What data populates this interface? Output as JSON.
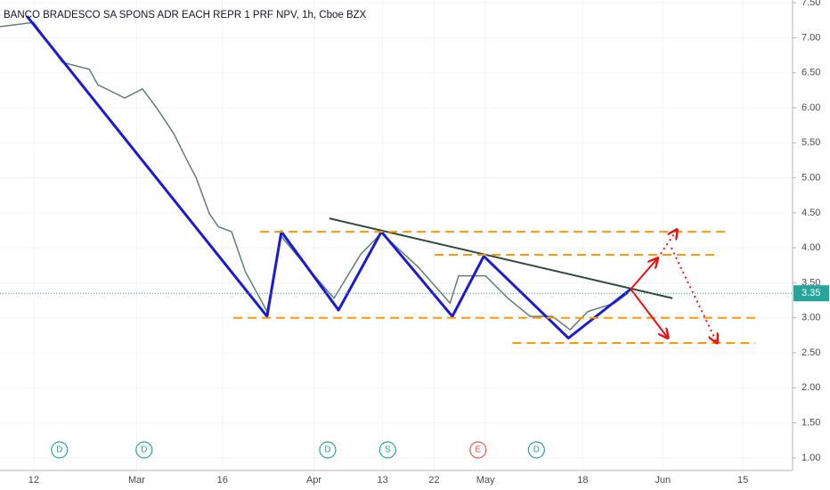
{
  "chart_data": {
    "type": "line",
    "title": "BANCO BRADESCO SA SPONS ADR EACH REPR 1 PRF NPV, 1h, Cboe BZX",
    "series": [
      {
        "color": "#5f7f73",
        "x": [
          37.1,
          43,
          48,
          52.7,
          54.2,
          58.9,
          62,
          64.4,
          67.5,
          69.8,
          71.4,
          73.7,
          75.3,
          77.6,
          80,
          83.8,
          86.2,
          90.8,
          95.5,
          100.2,
          103.8,
          110.3,
          115.8,
          117.3,
          122,
          125.9,
          129.8,
          133.7,
          136.8,
          139.9,
          144.6,
          146.9
        ],
        "values": [
          7.16,
          7.22,
          6.65,
          6.55,
          6.33,
          6.14,
          6.27,
          6.01,
          5.63,
          5.25,
          5.0,
          4.49,
          4.3,
          4.23,
          3.66,
          3.09,
          4.17,
          3.72,
          3.28,
          3.91,
          4.21,
          3.72,
          3.21,
          3.6,
          3.6,
          3.28,
          3.02,
          3.02,
          2.83,
          3.09,
          3.21,
          3.35
        ]
      }
    ],
    "last_price": {
      "value": 3.35,
      "label": "3.35",
      "color": "#26a69a"
    },
    "overlays": [
      {
        "style": "solid",
        "color": "#1a1ad6",
        "width": 3,
        "arrow": false,
        "x": [
          41.8,
          83.8,
          86.3,
          96.3,
          103.8,
          116.2,
          121.7,
          136.5,
          147.4
        ],
        "y": [
          7.31,
          3.02,
          4.23,
          3.11,
          4.23,
          3.02,
          3.88,
          2.71,
          3.41
        ]
      },
      {
        "style": "solid",
        "color": "#2e4a3a",
        "width": 2,
        "arrow": false,
        "x": [
          94.7,
          154.7
        ],
        "y": [
          4.42,
          3.28
        ]
      },
      {
        "style": "dashed",
        "color": "#ff9800",
        "width": 2,
        "arrow": false,
        "x": [
          82.6,
          164.1
        ],
        "y": [
          4.23,
          4.23
        ]
      },
      {
        "style": "dashed",
        "color": "#ff9800",
        "width": 2,
        "arrow": false,
        "x": [
          113.1,
          162.5
        ],
        "y": [
          3.9,
          3.9
        ]
      },
      {
        "style": "dashed",
        "color": "#ff9800",
        "width": 2,
        "arrow": false,
        "x": [
          77.9,
          169.2
        ],
        "y": [
          3.0,
          3.0
        ]
      },
      {
        "style": "dashed",
        "color": "#ff9800",
        "width": 2,
        "arrow": false,
        "x": [
          126.7,
          169.2
        ],
        "y": [
          2.64,
          2.64
        ]
      },
      {
        "style": "solid",
        "color": "#f01010",
        "width": 2,
        "arrow": true,
        "x": [
          147.4,
          152.1
        ],
        "y": [
          3.41,
          3.85
        ]
      },
      {
        "style": "solid",
        "color": "#f01010",
        "width": 2,
        "arrow": true,
        "x": [
          147.4,
          153.9
        ],
        "y": [
          3.41,
          2.71
        ]
      },
      {
        "style": "dotted",
        "color": "#f01010",
        "width": 2,
        "arrow": true,
        "x": [
          152.1,
          155.5
        ],
        "y": [
          3.85,
          4.26
        ]
      },
      {
        "style": "dotted",
        "color": "#f01010",
        "width": 2,
        "arrow": true,
        "x": [
          154.5,
          162.5
        ],
        "y": [
          4.0,
          2.64
        ]
      }
    ],
    "events": [
      {
        "label": "D",
        "x": 47.5,
        "color": "#26a69a"
      },
      {
        "label": "D",
        "x": 62.3,
        "color": "#26a69a"
      },
      {
        "label": "D",
        "x": 94.4,
        "color": "#26a69a"
      },
      {
        "label": "S",
        "x": 104.9,
        "color": "#26a69a"
      },
      {
        "label": "E",
        "x": 120.7,
        "color": "#ef5350"
      },
      {
        "label": "D",
        "x": 130.9,
        "color": "#26a69a"
      }
    ],
    "xlim": [
      37.1,
      175.7
    ],
    "xticks": [
      {
        "value": 43,
        "label": "12"
      },
      {
        "value": 61,
        "label": "Mar"
      },
      {
        "value": 76,
        "label": "16"
      },
      {
        "value": 92,
        "label": "Apr"
      },
      {
        "value": 104,
        "label": "13"
      },
      {
        "value": 113,
        "label": "22"
      },
      {
        "value": 122,
        "label": "May"
      },
      {
        "value": 139,
        "label": "18"
      },
      {
        "value": 153,
        "label": "Jun"
      },
      {
        "value": 167,
        "label": "15"
      }
    ],
    "ylim": [
      0.82,
      7.54
    ],
    "yticks": [
      {
        "value": 1,
        "label": "1.00"
      },
      {
        "value": 1.5,
        "label": "1.50"
      },
      {
        "value": 2,
        "label": "2.00"
      },
      {
        "value": 2.5,
        "label": "2.50"
      },
      {
        "value": 3,
        "label": "3.00"
      },
      {
        "value": 3.5,
        "label": "3.50"
      },
      {
        "value": 4,
        "label": "4.00"
      },
      {
        "value": 4.5,
        "label": "4.50"
      },
      {
        "value": 5,
        "label": "5.00"
      },
      {
        "value": 5.5,
        "label": "5.50"
      },
      {
        "value": 6,
        "label": "6.00"
      },
      {
        "value": 6.5,
        "label": "6.50"
      },
      {
        "value": 7,
        "label": "7.00"
      },
      {
        "value": 7.5,
        "label": "7.50"
      }
    ],
    "grid": true
  }
}
